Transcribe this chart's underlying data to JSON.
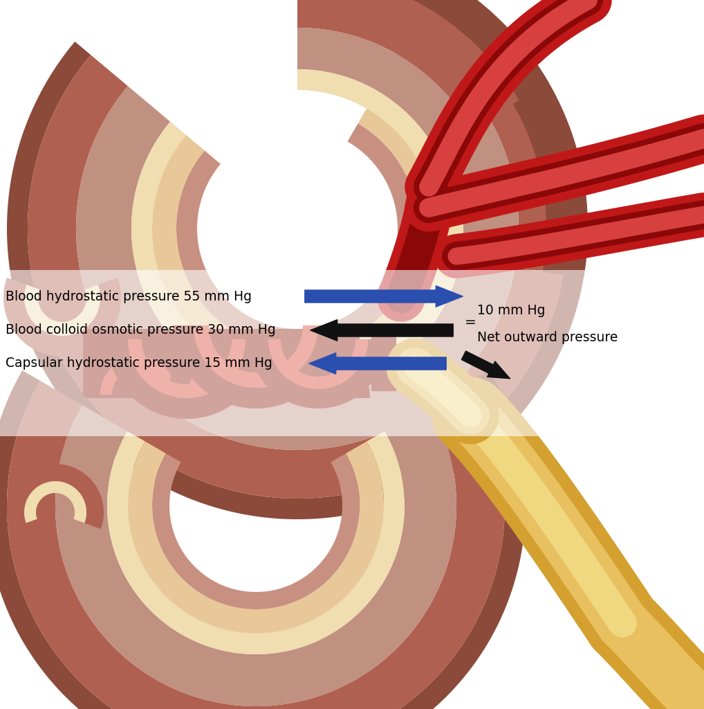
{
  "bg_color": "#ffffff",
  "label1": "Blood hydrostatic pressure 55 mm Hg",
  "label2": "Blood colloid osmotic pressure 30 mm Hg",
  "label3": "Capsular hydrostatic pressure 15 mm Hg",
  "equals_sign": "=",
  "result_line1": "10 mm Hg",
  "result_line2": "Net outward pressure",
  "arrow1_color": "#2b4faf",
  "arrow2_color": "#111111",
  "arrow3_color": "#2b4faf",
  "arrow4_color": "#111111",
  "text_color": "#000000",
  "label_fontsize": 13.5,
  "result_fontsize": 13.5,
  "figure_width": 10.18,
  "figure_height": 10.24,
  "tubule_outer_dark": "#8b4a3a",
  "tubule_outer_mid": "#b06050",
  "tubule_outer_light": "#c89080",
  "tubule_mid_dark": "#9a6050",
  "tubule_mid_mid": "#c09080",
  "tubule_mid_light": "#dbb090",
  "tubule_inner_cream": "#f0ddb0",
  "tubule_inner_light": "#e8c898",
  "tubule_fill": "#b08060",
  "glom_dark": "#8b1a0a",
  "glom_mid": "#c02818",
  "glom_light": "#d84030",
  "glom_highlight": "#e06050",
  "art_outer": "#c01818",
  "art_dark": "#8b0808",
  "art_light": "#d84040",
  "collect_outer": "#d4a030",
  "collect_mid": "#e8c060",
  "collect_light": "#f0d880"
}
